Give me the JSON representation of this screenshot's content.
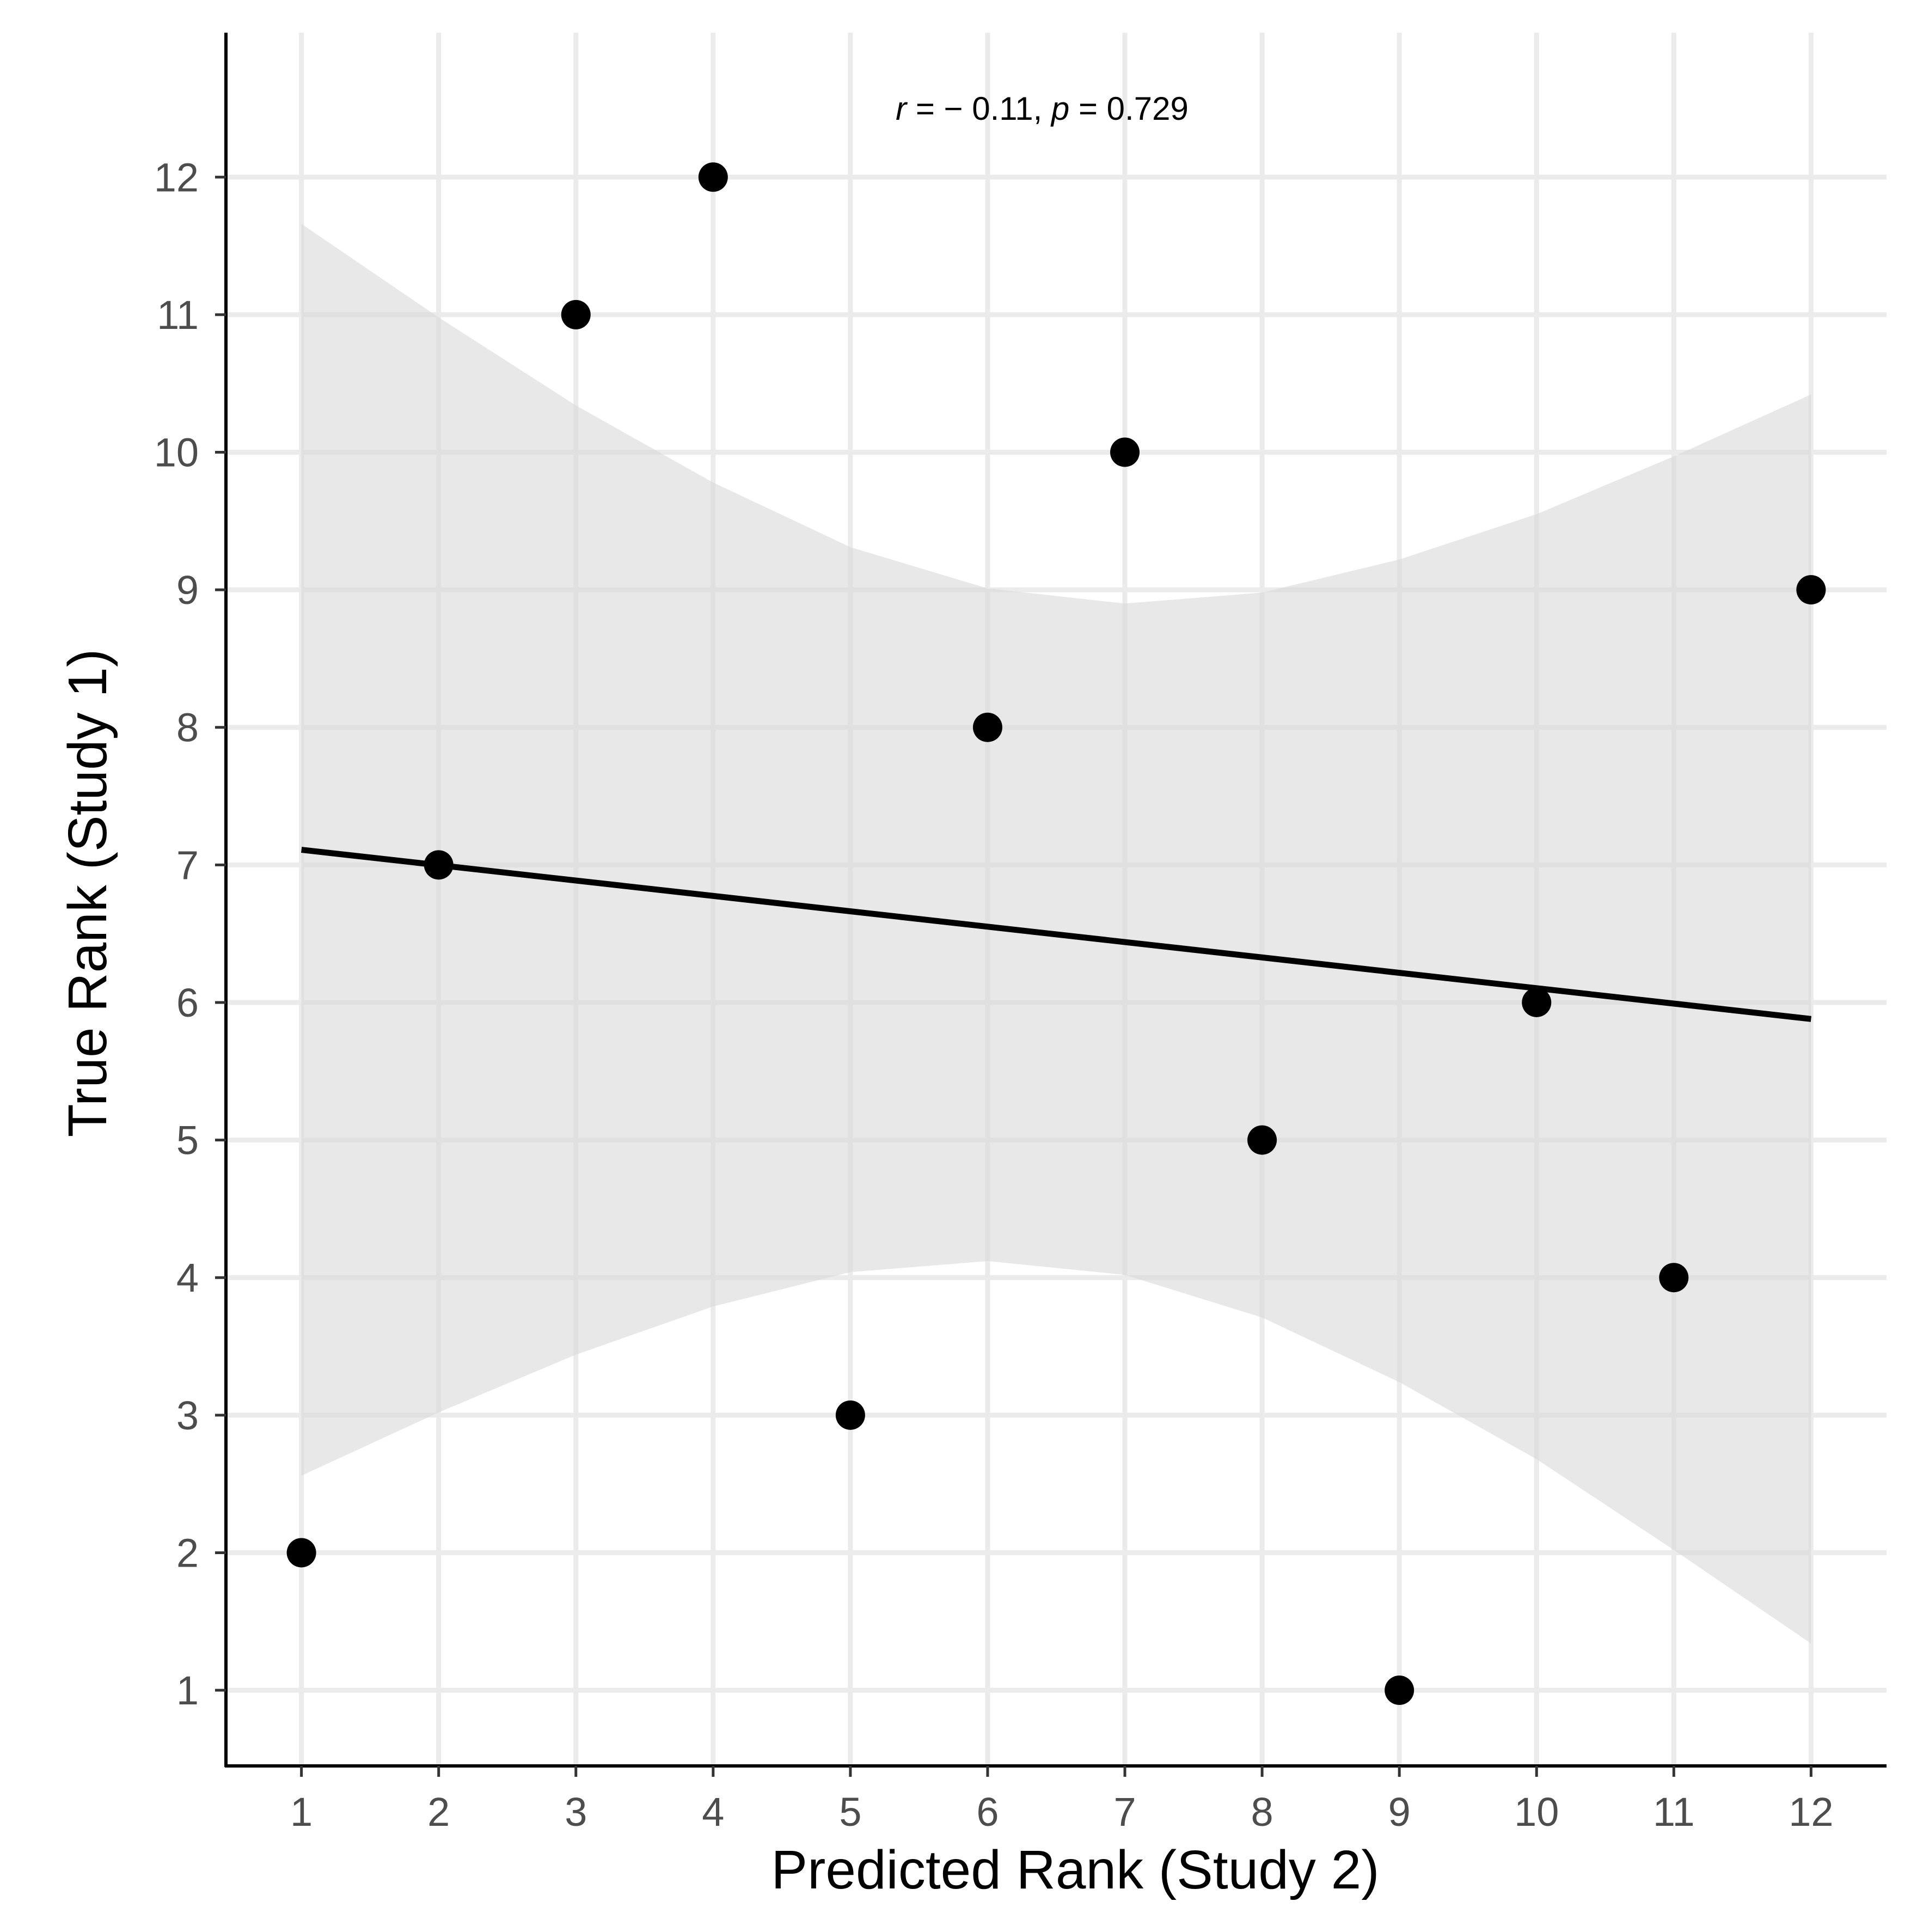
{
  "chart_data": {
    "type": "scatter",
    "xlabel": "Predicted Rank (Study 2)",
    "ylabel": "True Rank (Study 1)",
    "annotation": {
      "r_symbol": "r",
      "r_value": " = − 0.11, ",
      "p_symbol": "p",
      "p_value": " = 0.729"
    },
    "x_ticks": [
      "1",
      "2",
      "3",
      "4",
      "5",
      "6",
      "7",
      "8",
      "9",
      "10",
      "11",
      "12"
    ],
    "y_ticks": [
      "1",
      "2",
      "3",
      "4",
      "5",
      "6",
      "7",
      "8",
      "9",
      "10",
      "11",
      "12"
    ],
    "xlim": [
      0.45,
      12.55
    ],
    "ylim": [
      0.45,
      13.05
    ],
    "grid": true,
    "points": [
      {
        "x": 1,
        "y": 2
      },
      {
        "x": 2,
        "y": 7
      },
      {
        "x": 3,
        "y": 11
      },
      {
        "x": 4,
        "y": 12
      },
      {
        "x": 5,
        "y": 3
      },
      {
        "x": 6,
        "y": 8
      },
      {
        "x": 7,
        "y": 10
      },
      {
        "x": 8,
        "y": 5
      },
      {
        "x": 9,
        "y": 1
      },
      {
        "x": 10,
        "y": 6
      },
      {
        "x": 11,
        "y": 4
      },
      {
        "x": 12,
        "y": 9
      }
    ],
    "fit_line": {
      "x": [
        1,
        12
      ],
      "y": [
        7.11,
        5.88
      ]
    },
    "confidence_band": {
      "x": [
        1,
        2,
        3,
        4,
        5,
        6,
        7,
        8,
        9,
        10,
        11,
        12
      ],
      "upper": [
        11.66,
        10.98,
        10.34,
        9.78,
        9.31,
        9.01,
        8.9,
        8.98,
        9.22,
        9.55,
        9.97,
        10.42
      ],
      "lower": [
        2.56,
        3.02,
        3.44,
        3.79,
        4.04,
        4.12,
        4.02,
        3.71,
        3.24,
        2.68,
        2.02,
        1.34
      ]
    },
    "colors": {
      "points": "#000000",
      "line": "#000000",
      "band": "#d9d9d9",
      "grid": "#ebebeb",
      "axis": "#000000"
    }
  }
}
